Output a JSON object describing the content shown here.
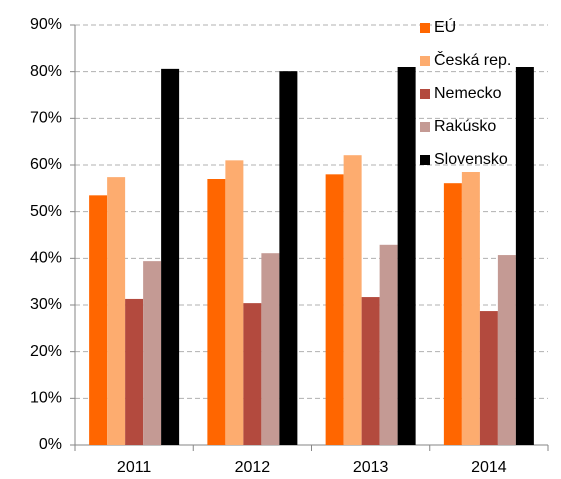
{
  "chart_data": {
    "type": "bar",
    "categories": [
      "2011",
      "2012",
      "2013",
      "2014"
    ],
    "series": [
      {
        "name": "EÚ",
        "color": "#ff6600",
        "values": [
          53.5,
          57,
          58,
          56.1
        ]
      },
      {
        "name": "Česká rep.",
        "color": "#fdac6f",
        "values": [
          57.4,
          61,
          62.1,
          58.5
        ]
      },
      {
        "name": "Nemecko",
        "color": "#b34a3e",
        "values": [
          31.3,
          30.4,
          31.7,
          28.7
        ]
      },
      {
        "name": "Rakúsko",
        "color": "#c49a94",
        "values": [
          39.4,
          41.1,
          42.9,
          40.7
        ]
      },
      {
        "name": "Slovensko",
        "color": "#000000",
        "values": [
          80.6,
          80.1,
          81,
          81
        ]
      }
    ],
    "ylim": [
      0,
      90
    ],
    "yticks": [
      {
        "value": 0,
        "label": "0%"
      },
      {
        "value": 10,
        "label": "10%"
      },
      {
        "value": 20,
        "label": "20%"
      },
      {
        "value": 30,
        "label": "30%"
      },
      {
        "value": 40,
        "label": "40%"
      },
      {
        "value": 50,
        "label": "50%"
      },
      {
        "value": 60,
        "label": "60%"
      },
      {
        "value": 70,
        "label": "70%"
      },
      {
        "value": 80,
        "label": "80%"
      },
      {
        "value": 90,
        "label": "90%"
      }
    ],
    "grid": true,
    "legend": "top-right"
  }
}
